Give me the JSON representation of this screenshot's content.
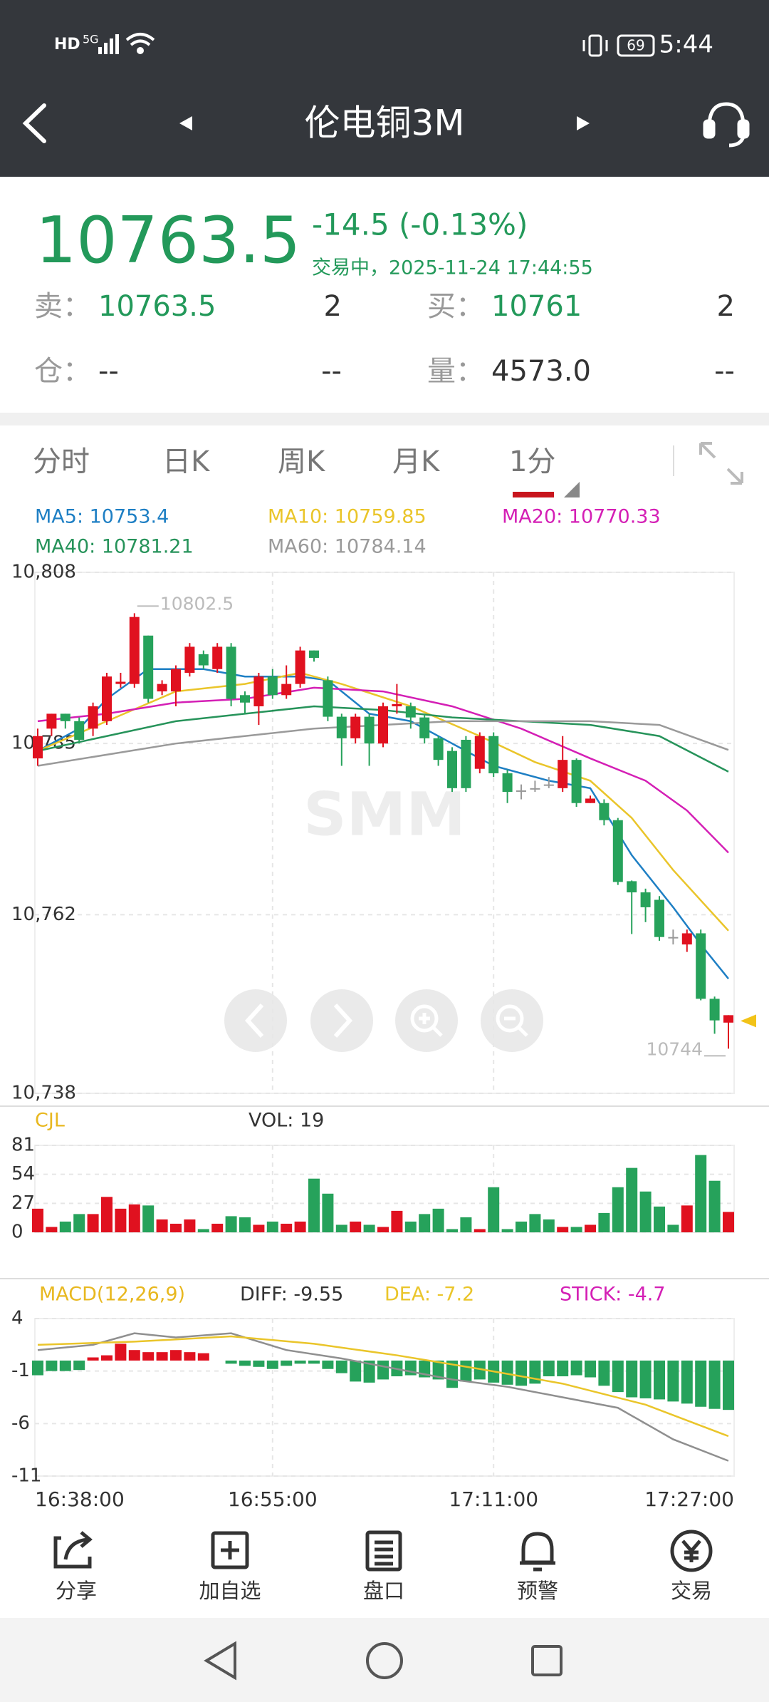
{
  "status_bar": {
    "hd": "HD",
    "network": "5G",
    "battery": "69",
    "time": "5:44"
  },
  "header": {
    "title": "伦电铜3M"
  },
  "quote": {
    "price": "10763.5",
    "change": "-14.5",
    "change_pct": "(-0.13%)",
    "status": "交易中，2025-11-24 17:44:55",
    "rows": [
      [
        "卖：",
        "10763.5",
        "2",
        "买：",
        "10761",
        "2"
      ],
      [
        "仓：",
        "--",
        "--",
        "量：",
        "4573.0",
        "--"
      ]
    ]
  },
  "tabs": [
    "分时",
    "日K",
    "周K",
    "月K",
    "1分"
  ],
  "chart_data": [
    {
      "type": "candlestick",
      "watermark": "SMM",
      "up_color": "#e0111f",
      "down_color": "#26a25b",
      "ylim": [
        10738,
        10808
      ],
      "yticks": [
        {
          "value": 10808,
          "label": "10,808"
        },
        {
          "value": 10785,
          "label": "10,785"
        },
        {
          "value": 10762,
          "label": "10,762"
        },
        {
          "value": 10738,
          "label": "10,738"
        }
      ],
      "grid": true,
      "max_label": "10802.5",
      "min_label": "10744",
      "candles": [
        [
          10783,
          10787,
          10782,
          10786
        ],
        [
          10787,
          10789,
          10786,
          10789
        ],
        [
          10789,
          10789,
          10787,
          10788
        ],
        [
          10788,
          10788.5,
          10785,
          10785.5
        ],
        [
          10787,
          10790.5,
          10786,
          10790
        ],
        [
          10788,
          10794.5,
          10787.5,
          10794
        ],
        [
          10793,
          10794.5,
          10792.5,
          10793.3
        ],
        [
          10793,
          10802.5,
          10792.5,
          10802
        ],
        [
          10799.5,
          10799.5,
          10790.5,
          10791
        ],
        [
          10792,
          10793.5,
          10791.5,
          10793
        ],
        [
          10792,
          10795.5,
          10790,
          10795
        ],
        [
          10794.5,
          10798.5,
          10794,
          10798
        ],
        [
          10797,
          10797.5,
          10795,
          10795.5
        ],
        [
          10795,
          10798.5,
          10794.5,
          10798
        ],
        [
          10798,
          10798.5,
          10790,
          10791
        ],
        [
          10791.5,
          10792,
          10789,
          10790.5
        ],
        [
          10790,
          10794.5,
          10787.5,
          10794
        ],
        [
          10794,
          10795,
          10791,
          10791.5
        ],
        [
          10791.5,
          10795.5,
          10791,
          10793
        ],
        [
          10793,
          10798,
          10792.5,
          10797.5
        ],
        [
          10797.5,
          10797.5,
          10796,
          10796.5
        ],
        [
          10793.5,
          10794,
          10788,
          10788.6
        ],
        [
          10788.6,
          10789,
          10782,
          10785.7
        ],
        [
          10785.7,
          10789,
          10785,
          10788.6
        ],
        [
          10788.6,
          10789,
          10782,
          10785
        ],
        [
          10785,
          10790.5,
          10784.5,
          10790
        ],
        [
          10790,
          10793,
          10789,
          10790.3
        ],
        [
          10790,
          10790.5,
          10787,
          10788.5
        ],
        [
          10788.5,
          10789,
          10785,
          10785.7
        ],
        [
          10785.7,
          10786,
          10782,
          10782.8
        ],
        [
          10784,
          10784.5,
          10778.5,
          10779
        ],
        [
          10785.5,
          10786,
          10778.5,
          10779
        ],
        [
          10781.6,
          10786.5,
          10781,
          10786
        ],
        [
          10786,
          10786.5,
          10780.5,
          10781
        ],
        [
          10781,
          10781.5,
          10777,
          10778.5
        ],
        [
          10778.7,
          10779.5,
          10777.5,
          10778.7
        ],
        [
          10779,
          10780,
          10778.5,
          10779
        ],
        [
          10779.5,
          10780.5,
          10779,
          10779.5
        ],
        [
          10779,
          10786,
          10778.5,
          10782.8
        ],
        [
          10782.8,
          10783,
          10776.5,
          10777
        ],
        [
          10777,
          10778,
          10777,
          10777.6
        ],
        [
          10777,
          10777.5,
          10774,
          10774.7
        ],
        [
          10774.7,
          10775,
          10766,
          10766.4
        ],
        [
          10766.5,
          10766.6,
          10759.4,
          10765
        ],
        [
          10765,
          10765.5,
          10761,
          10763
        ],
        [
          10764,
          10764.5,
          10758.5,
          10759
        ],
        [
          10759,
          10760,
          10758,
          10759
        ],
        [
          10758,
          10760,
          10757,
          10759.5
        ],
        [
          10759.5,
          10760,
          10750.5,
          10750.7
        ],
        [
          10750.7,
          10751,
          10746,
          10747.8
        ],
        [
          10747.5,
          10748.5,
          10744,
          10748.5
        ]
      ],
      "series": [
        {
          "name": "MA5: 10753.4",
          "color": "#1e7fc4",
          "x": [
            0,
            3,
            5,
            8,
            12,
            15,
            19,
            21,
            24,
            27,
            30,
            33,
            37,
            40,
            43,
            46,
            48,
            50
          ],
          "values": [
            10784,
            10787,
            10791,
            10795,
            10795,
            10794,
            10794,
            10793.5,
            10789,
            10788,
            10785,
            10782,
            10780,
            10779,
            10770,
            10763,
            10758,
            10753.4
          ]
        },
        {
          "name": "MA10: 10759.85",
          "color": "#eac52a",
          "x": [
            0,
            5,
            10,
            15,
            19,
            22,
            27,
            32,
            36,
            40,
            43,
            46,
            50
          ],
          "values": [
            10784,
            10788,
            10792,
            10793,
            10794.5,
            10793,
            10790,
            10786,
            10782.5,
            10780,
            10775,
            10768,
            10759.85
          ]
        },
        {
          "name": "MA20: 10770.33",
          "color": "#d41fb5",
          "x": [
            0,
            5,
            10,
            15,
            20,
            25,
            30,
            35,
            40,
            44,
            47,
            50
          ],
          "values": [
            10788,
            10789,
            10790.5,
            10791,
            10792.5,
            10792,
            10790,
            10787,
            10783,
            10780,
            10776,
            10770.33
          ]
        },
        {
          "name": "MA40: 10781.21",
          "color": "#26935a",
          "x": [
            0,
            5,
            10,
            15,
            20,
            25,
            30,
            35,
            40,
            45,
            50
          ],
          "values": [
            10784,
            10786,
            10788,
            10789,
            10790,
            10789.5,
            10788.5,
            10788,
            10787.5,
            10786,
            10781.21
          ]
        },
        {
          "name": "MA60: 10784.14",
          "color": "#9a9a9a",
          "x": [
            0,
            10,
            20,
            30,
            40,
            45,
            50
          ],
          "values": [
            10782,
            10785,
            10787,
            10788,
            10788,
            10787.5,
            10784.14
          ]
        }
      ]
    },
    {
      "type": "bar",
      "title": "CJL",
      "legend": "VOL: 19",
      "ylim": [
        0,
        81
      ],
      "yticks": [
        0,
        27,
        54,
        81
      ],
      "values": [
        22,
        5,
        10,
        17,
        17,
        33,
        22,
        26,
        25,
        12,
        8,
        12,
        3,
        8,
        15,
        14,
        7,
        10,
        8,
        10,
        50,
        36,
        7,
        10,
        7,
        5,
        20,
        10,
        17,
        22,
        3,
        14,
        3,
        42,
        3,
        10,
        17,
        12,
        5,
        5,
        7,
        18,
        42,
        60,
        38,
        24,
        7,
        25,
        72,
        48,
        19
      ]
    },
    {
      "type": "bar",
      "title": "MACD(12,26,9)",
      "legend": [
        {
          "label": "DIFF: -9.55",
          "color": "#333333"
        },
        {
          "label": "DEA: -7.2",
          "color": "#eac52a"
        },
        {
          "label": "STICK: -4.7",
          "color": "#d41fb5"
        }
      ],
      "ylim": [
        -11,
        4
      ],
      "yticks": [
        4,
        -1,
        -6,
        -11
      ],
      "values": [
        -1.4,
        -1,
        -1,
        -0.9,
        0.3,
        0.5,
        1.6,
        1,
        0.8,
        0.8,
        1,
        0.8,
        0.7,
        0,
        -0.3,
        -0.5,
        -0.6,
        -0.8,
        -0.5,
        -0.3,
        -0.3,
        -0.8,
        -1.2,
        -2,
        -2.1,
        -1.8,
        -1.5,
        -1.4,
        -1.6,
        -1.8,
        -2.6,
        -2,
        -1.8,
        -2.1,
        -2.3,
        -2.4,
        -2.2,
        -1.5,
        -1.5,
        -1.4,
        -1.6,
        -2.4,
        -3,
        -3.5,
        -3.6,
        -3.7,
        -3.9,
        -4.1,
        -4.4,
        -4.6,
        -4.7
      ],
      "series": [
        {
          "color": "#8f8f8f",
          "x": [
            0,
            4,
            7,
            10,
            14,
            18,
            22,
            26,
            30,
            34,
            38,
            42,
            46,
            50
          ],
          "values": [
            1,
            1.5,
            2.6,
            2.2,
            2.6,
            1,
            0.2,
            -0.8,
            -1.8,
            -2.5,
            -3.5,
            -4.5,
            -7.5,
            -9.55
          ]
        },
        {
          "color": "#eac52a",
          "x": [
            0,
            7,
            14,
            20,
            26,
            32,
            38,
            44,
            50
          ],
          "values": [
            1.5,
            1.8,
            2.3,
            1.6,
            0.5,
            -0.8,
            -2.2,
            -4.2,
            -7.2
          ]
        }
      ],
      "x_labels": [
        {
          "index": 0,
          "label": "16:38:00"
        },
        {
          "index": 17,
          "label": "16:55:00"
        },
        {
          "index": 33,
          "label": "17:11:00"
        },
        {
          "index": 50,
          "label": "17:27:00"
        }
      ]
    }
  ],
  "toolbar": [
    "分享",
    "加自选",
    "盘口",
    "预警",
    "交易"
  ]
}
